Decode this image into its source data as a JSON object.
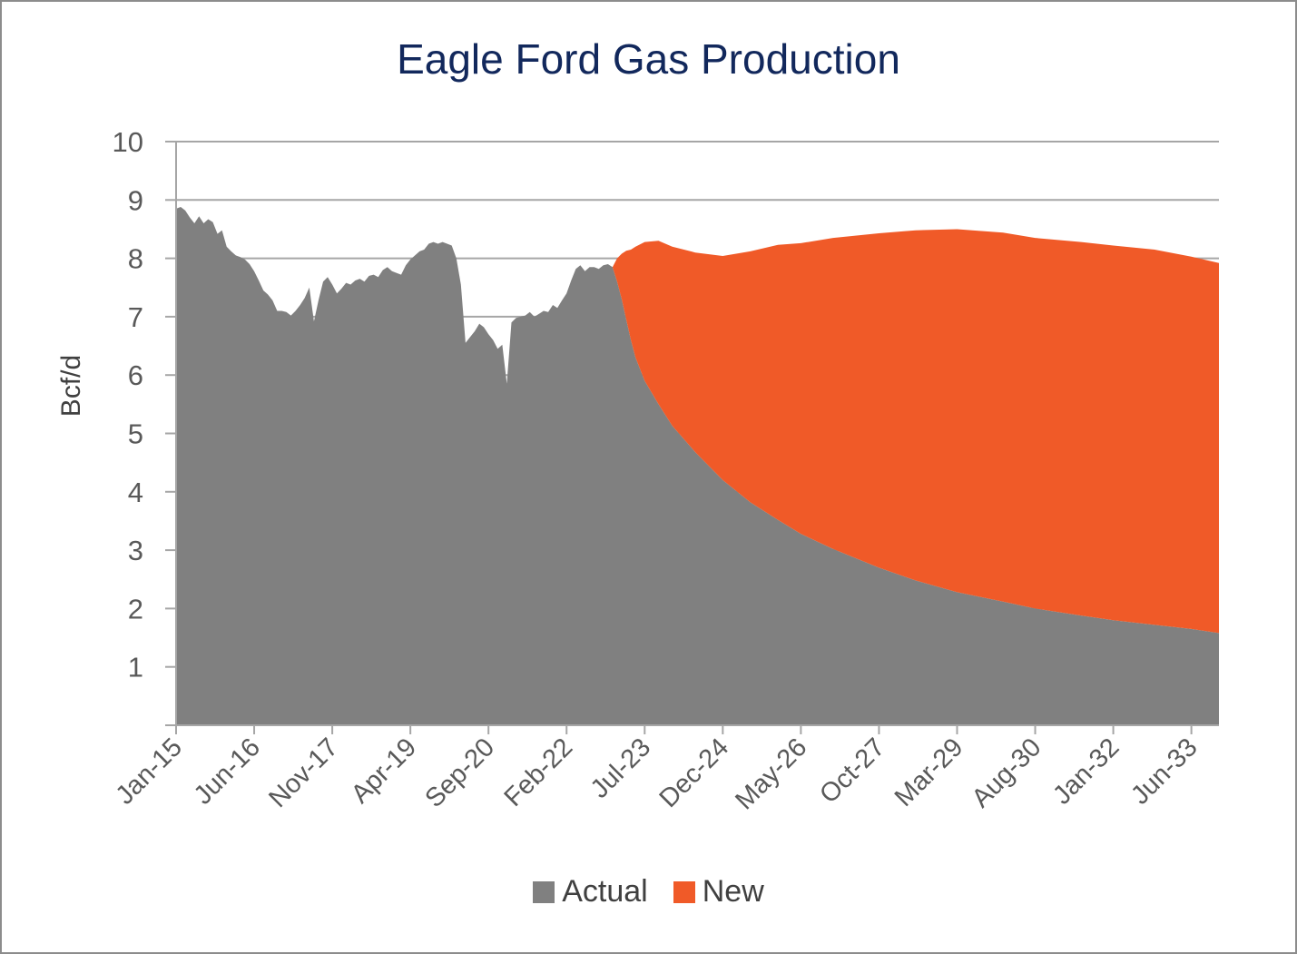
{
  "chart_data": {
    "type": "area",
    "stacked": true,
    "title": "Eagle Ford Gas Production",
    "xlabel": "",
    "ylabel": "Bcf/d",
    "ylim": [
      0,
      10
    ],
    "yticks": [
      1,
      2,
      3,
      4,
      5,
      6,
      7,
      8,
      9,
      10
    ],
    "gridlines": "horizontal",
    "xlim": [
      "2015-01",
      "2033-12"
    ],
    "xtick_labels": [
      "Jan-15",
      "Jun-16",
      "Nov-17",
      "Apr-19",
      "Sep-20",
      "Feb-22",
      "Jul-23",
      "Dec-24",
      "May-26",
      "Oct-27",
      "Mar-29",
      "Aug-30",
      "Jan-32",
      "Jun-33"
    ],
    "xtick_dates": [
      "2015-01",
      "2016-06",
      "2017-11",
      "2019-04",
      "2020-09",
      "2022-02",
      "2023-07",
      "2024-12",
      "2026-05",
      "2027-10",
      "2029-03",
      "2030-08",
      "2032-01",
      "2033-06"
    ],
    "legend_position": "bottom",
    "series": [
      {
        "name": "Actual",
        "color": "#808080",
        "points": [
          [
            "2015-01",
            8.85
          ],
          [
            "2015-02",
            8.88
          ],
          [
            "2015-03",
            8.82
          ],
          [
            "2015-04",
            8.7
          ],
          [
            "2015-05",
            8.6
          ],
          [
            "2015-06",
            8.72
          ],
          [
            "2015-07",
            8.6
          ],
          [
            "2015-08",
            8.67
          ],
          [
            "2015-09",
            8.62
          ],
          [
            "2015-10",
            8.42
          ],
          [
            "2015-11",
            8.48
          ],
          [
            "2015-12",
            8.2
          ],
          [
            "2016-01",
            8.12
          ],
          [
            "2016-02",
            8.05
          ],
          [
            "2016-03",
            8.02
          ],
          [
            "2016-04",
            7.98
          ],
          [
            "2016-05",
            7.9
          ],
          [
            "2016-06",
            7.78
          ],
          [
            "2016-07",
            7.62
          ],
          [
            "2016-08",
            7.45
          ],
          [
            "2016-09",
            7.38
          ],
          [
            "2016-10",
            7.28
          ],
          [
            "2016-11",
            7.1
          ],
          [
            "2016-12",
            7.1
          ],
          [
            "2017-01",
            7.08
          ],
          [
            "2017-02",
            7.02
          ],
          [
            "2017-03",
            7.1
          ],
          [
            "2017-04",
            7.2
          ],
          [
            "2017-05",
            7.32
          ],
          [
            "2017-06",
            7.5
          ],
          [
            "2017-07",
            6.92
          ],
          [
            "2017-08",
            7.28
          ],
          [
            "2017-09",
            7.6
          ],
          [
            "2017-10",
            7.68
          ],
          [
            "2017-11",
            7.55
          ],
          [
            "2017-12",
            7.4
          ],
          [
            "2018-01",
            7.48
          ],
          [
            "2018-02",
            7.58
          ],
          [
            "2018-03",
            7.55
          ],
          [
            "2018-04",
            7.62
          ],
          [
            "2018-05",
            7.65
          ],
          [
            "2018-06",
            7.6
          ],
          [
            "2018-07",
            7.7
          ],
          [
            "2018-08",
            7.72
          ],
          [
            "2018-09",
            7.68
          ],
          [
            "2018-10",
            7.8
          ],
          [
            "2018-11",
            7.85
          ],
          [
            "2018-12",
            7.78
          ],
          [
            "2019-01",
            7.75
          ],
          [
            "2019-02",
            7.72
          ],
          [
            "2019-03",
            7.88
          ],
          [
            "2019-04",
            7.98
          ],
          [
            "2019-05",
            8.05
          ],
          [
            "2019-06",
            8.12
          ],
          [
            "2019-07",
            8.15
          ],
          [
            "2019-08",
            8.25
          ],
          [
            "2019-09",
            8.28
          ],
          [
            "2019-10",
            8.25
          ],
          [
            "2019-11",
            8.28
          ],
          [
            "2019-12",
            8.25
          ],
          [
            "2020-01",
            8.22
          ],
          [
            "2020-02",
            8.0
          ],
          [
            "2020-03",
            7.55
          ],
          [
            "2020-04",
            6.55
          ],
          [
            "2020-05",
            6.65
          ],
          [
            "2020-06",
            6.75
          ],
          [
            "2020-07",
            6.88
          ],
          [
            "2020-08",
            6.82
          ],
          [
            "2020-09",
            6.7
          ],
          [
            "2020-10",
            6.6
          ],
          [
            "2020-11",
            6.45
          ],
          [
            "2020-12",
            6.52
          ],
          [
            "2021-01",
            5.85
          ],
          [
            "2021-02",
            6.9
          ],
          [
            "2021-03",
            6.98
          ],
          [
            "2021-04",
            7.0
          ],
          [
            "2021-05",
            7.02
          ],
          [
            "2021-06",
            7.08
          ],
          [
            "2021-07",
            7.0
          ],
          [
            "2021-08",
            7.05
          ],
          [
            "2021-09",
            7.1
          ],
          [
            "2021-10",
            7.08
          ],
          [
            "2021-11",
            7.2
          ],
          [
            "2021-12",
            7.15
          ],
          [
            "2022-01",
            7.28
          ],
          [
            "2022-02",
            7.4
          ],
          [
            "2022-03",
            7.62
          ],
          [
            "2022-04",
            7.82
          ],
          [
            "2022-05",
            7.88
          ],
          [
            "2022-06",
            7.78
          ],
          [
            "2022-07",
            7.85
          ],
          [
            "2022-08",
            7.85
          ],
          [
            "2022-09",
            7.82
          ],
          [
            "2022-10",
            7.88
          ],
          [
            "2022-11",
            7.9
          ],
          [
            "2022-12",
            7.85
          ],
          [
            "2023-01",
            7.6
          ],
          [
            "2023-02",
            7.3
          ],
          [
            "2023-03",
            6.95
          ],
          [
            "2023-04",
            6.6
          ],
          [
            "2023-05",
            6.3
          ],
          [
            "2023-07",
            5.9
          ],
          [
            "2023-10",
            5.5
          ],
          [
            "2024-01",
            5.13
          ],
          [
            "2024-06",
            4.68
          ],
          [
            "2024-12",
            4.2
          ],
          [
            "2025-06",
            3.82
          ],
          [
            "2025-12",
            3.52
          ],
          [
            "2026-05",
            3.28
          ],
          [
            "2026-12",
            3.02
          ],
          [
            "2027-10",
            2.7
          ],
          [
            "2028-06",
            2.48
          ],
          [
            "2029-03",
            2.28
          ],
          [
            "2030-01",
            2.12
          ],
          [
            "2030-08",
            2.0
          ],
          [
            "2031-06",
            1.88
          ],
          [
            "2032-01",
            1.8
          ],
          [
            "2032-10",
            1.72
          ],
          [
            "2033-06",
            1.65
          ],
          [
            "2033-12",
            1.58
          ]
        ]
      },
      {
        "name": "New",
        "color": "#f05a28",
        "points": [
          [
            "2022-12",
            0.0
          ],
          [
            "2023-01",
            0.4
          ],
          [
            "2023-02",
            0.78
          ],
          [
            "2023-03",
            1.18
          ],
          [
            "2023-04",
            1.55
          ],
          [
            "2023-05",
            1.9
          ],
          [
            "2023-07",
            2.38
          ],
          [
            "2023-10",
            2.8
          ],
          [
            "2024-01",
            3.07
          ],
          [
            "2024-06",
            3.42
          ],
          [
            "2024-12",
            3.84
          ],
          [
            "2025-06",
            4.3
          ],
          [
            "2025-12",
            4.71
          ],
          [
            "2026-05",
            4.98
          ],
          [
            "2026-12",
            5.33
          ],
          [
            "2027-10",
            5.73
          ],
          [
            "2028-06",
            6.0
          ],
          [
            "2029-03",
            6.22
          ],
          [
            "2030-01",
            6.32
          ],
          [
            "2030-08",
            6.35
          ],
          [
            "2031-06",
            6.4
          ],
          [
            "2032-01",
            6.42
          ],
          [
            "2032-10",
            6.43
          ],
          [
            "2033-06",
            6.38
          ],
          [
            "2033-12",
            6.34
          ]
        ]
      }
    ]
  }
}
